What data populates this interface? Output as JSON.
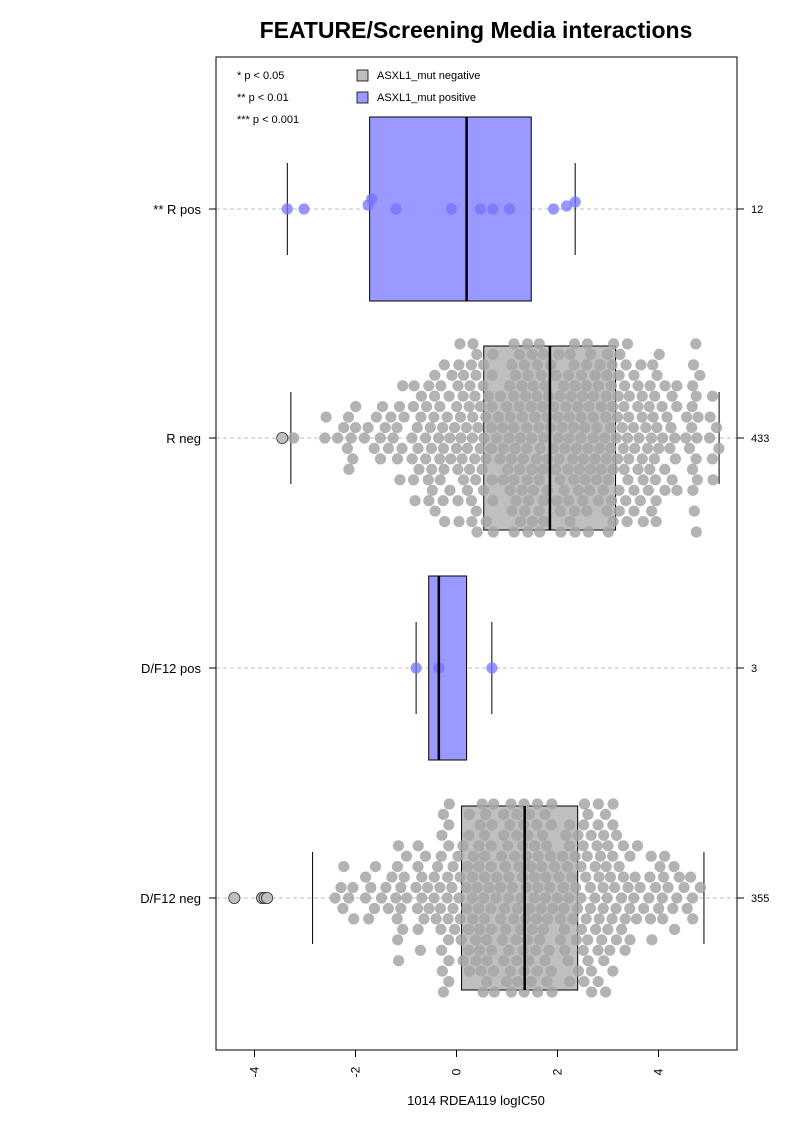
{
  "chart_data": {
    "type": "boxplot-beeswarm",
    "orientation": "horizontal",
    "title": "FEATURE/Screening Media interactions",
    "xlabel": "1014 RDEA119 logIC50",
    "ylabel": "",
    "xlim": [
      -4.8,
      5.6
    ],
    "xticks": [
      -4,
      -2,
      0,
      2,
      4
    ],
    "grid": false,
    "significance_legend": [
      "* p < 0.05",
      "** p < 0.01",
      "*** p < 0.001"
    ],
    "legend": {
      "placement": "top",
      "entries": [
        {
          "label": "ASXL1_mut negative",
          "color": "#bfbfbf"
        },
        {
          "label": "ASXL1_mut positive",
          "color": "#9999ff"
        }
      ]
    },
    "colors": {
      "negative_box": "#bfbfbf",
      "negative_point": "#a6a6a6",
      "positive_box": "#9999ff",
      "positive_point": "#7373ff",
      "outlier_fill": "#bfbfbf"
    },
    "groups": [
      {
        "label": "** R pos",
        "n": "12",
        "status": "positive",
        "box": {
          "whisker_low": -3.35,
          "q1": -1.72,
          "median": 0.2,
          "q3": 1.48,
          "whisker_high": 2.35
        },
        "points": [
          -3.35,
          -3.02,
          -1.75,
          -1.68,
          -1.2,
          -0.1,
          0.47,
          0.72,
          1.05,
          1.92,
          2.18,
          2.35
        ],
        "outliers": []
      },
      {
        "label": "R neg",
        "n": "433",
        "status": "negative",
        "box": {
          "whisker_low": -3.28,
          "q1": 0.54,
          "median": 1.85,
          "q3": 3.15,
          "whisker_high": 5.2
        },
        "points": [],
        "outliers": [
          -3.45
        ]
      },
      {
        "label": "D/F12 pos",
        "n": "3",
        "status": "positive",
        "box": {
          "whisker_low": -0.8,
          "q1": -0.55,
          "median": -0.35,
          "q3": 0.2,
          "whisker_high": 0.7
        },
        "points": [
          -0.8,
          -0.35,
          0.7
        ],
        "outliers": []
      },
      {
        "label": "D/F12 neg",
        "n": "355",
        "status": "negative",
        "box": {
          "whisker_low": -2.85,
          "q1": 0.1,
          "median": 1.35,
          "q3": 2.4,
          "whisker_high": 4.9
        },
        "points": [],
        "outliers": [
          -4.4,
          -3.85,
          -3.8,
          -3.75
        ]
      }
    ]
  }
}
